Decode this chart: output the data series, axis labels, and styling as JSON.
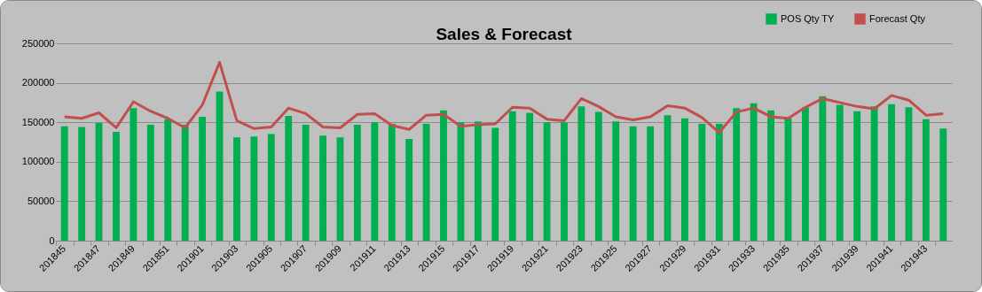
{
  "chart_data": {
    "type": "bar",
    "title": "Sales & Forecast",
    "categories": [
      "201845",
      null,
      "201847",
      null,
      "201849",
      null,
      "201851",
      null,
      "201901",
      null,
      "201903",
      null,
      "201905",
      null,
      "201907",
      null,
      "201909",
      null,
      "201911",
      null,
      "201913",
      null,
      "201915",
      null,
      "201917",
      null,
      "201919",
      null,
      "201921",
      null,
      "201923",
      null,
      "201925",
      null,
      "201927",
      null,
      "201929",
      null,
      "201931",
      null,
      "201933",
      null,
      "201935",
      null,
      "201937",
      null,
      "201939",
      null,
      "201941",
      null,
      "201943",
      null
    ],
    "series": [
      {
        "name": "POS Qty TY",
        "color": "#00b050",
        "values": [
          145000,
          144000,
          149000,
          138000,
          168000,
          147000,
          154000,
          147000,
          157000,
          189000,
          131000,
          132000,
          135000,
          158000,
          147000,
          133000,
          131000,
          147000,
          150000,
          148000,
          129000,
          148000,
          165000,
          150000,
          151000,
          143000,
          164000,
          162000,
          150000,
          150000,
          170000,
          163000,
          151000,
          145000,
          145000,
          159000,
          155000,
          148000,
          148000,
          168000,
          174000,
          165000,
          155000,
          169000,
          183000,
          172000,
          164000,
          170000,
          173000,
          169000,
          154000,
          142000
        ]
      },
      {
        "name": "Forecast Qty",
        "type": "line",
        "color": "#c0504d",
        "values": [
          157000,
          155000,
          162000,
          143000,
          176000,
          164000,
          155000,
          143000,
          172000,
          226000,
          152000,
          142000,
          144000,
          168000,
          161000,
          144000,
          143000,
          160000,
          161000,
          146000,
          141000,
          159000,
          160000,
          145000,
          147000,
          148000,
          169000,
          168000,
          154000,
          152000,
          180000,
          170000,
          157000,
          153000,
          157000,
          171000,
          168000,
          156000,
          137000,
          163000,
          168000,
          157000,
          155000,
          169000,
          180000,
          175000,
          170000,
          167000,
          184000,
          178000,
          159000,
          161000
        ]
      }
    ],
    "ylim": [
      0,
      250000
    ],
    "yticks": [
      0,
      50000,
      100000,
      150000,
      200000,
      250000
    ],
    "grid": "y",
    "legend": "top right",
    "marker": "none",
    "line_style": "solid"
  }
}
